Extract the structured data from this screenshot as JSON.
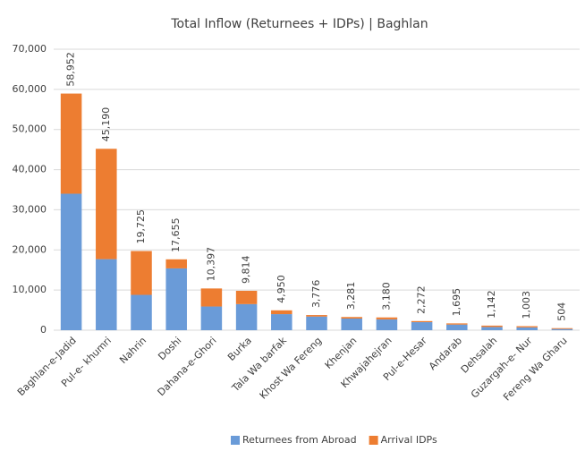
{
  "chart_data": {
    "type": "stacked_bar",
    "title": "Total Inflow (Returnees + IDPs) | Baghlan",
    "categories": [
      "Baghlan-e-Jadid",
      "Pul-e- khumri",
      "Nahrin",
      "Doshi",
      "Dahana-e-Ghori",
      "Burka",
      "Tala Wa barfak",
      "Khost Wa Fereng",
      "Khenjan",
      "Khwajahejran",
      "Pul-e-Hesar",
      "Andarab",
      "Dehsalah",
      "Guzargah-e- Nur",
      "Fereng Wa Gharu"
    ],
    "series": [
      {
        "name": "Returnees from Abroad",
        "color": "#6a9bd8",
        "values": [
          34000,
          17700,
          8800,
          15400,
          5900,
          6500,
          4000,
          3400,
          2900,
          2700,
          2000,
          1400,
          800,
          700,
          300
        ]
      },
      {
        "name": "Arrival IDPs",
        "color": "#ed7d31",
        "values": [
          24952,
          27490,
          10925,
          2255,
          4497,
          3314,
          950,
          376,
          381,
          480,
          272,
          295,
          342,
          303,
          204
        ]
      }
    ],
    "totals": [
      58952,
      45190,
      19725,
      17655,
      10397,
      9814,
      4950,
      3776,
      3281,
      3180,
      2272,
      1695,
      1142,
      1003,
      504
    ],
    "total_labels": [
      "58,952",
      "45,190",
      "19,725",
      "17,655",
      "10,397",
      "9,814",
      "4,950",
      "3,776",
      "3,281",
      "3,180",
      "2,272",
      "1,695",
      "1,142",
      "1,003",
      "504"
    ],
    "ylim": [
      0,
      70000
    ],
    "yticks": [
      0,
      {
        "value": 10000,
        "label": "10,000"
      },
      {
        "value": 20000,
        "label": "20,000"
      },
      {
        "value": 30000,
        "label": "30,000"
      },
      {
        "value": 40000,
        "label": "40,000"
      },
      {
        "value": 50000,
        "label": "50,000"
      },
      {
        "value": 60000,
        "label": "60,000"
      },
      {
        "value": 70000,
        "label": "70,000"
      }
    ],
    "grid": true,
    "legend": "bottom"
  }
}
